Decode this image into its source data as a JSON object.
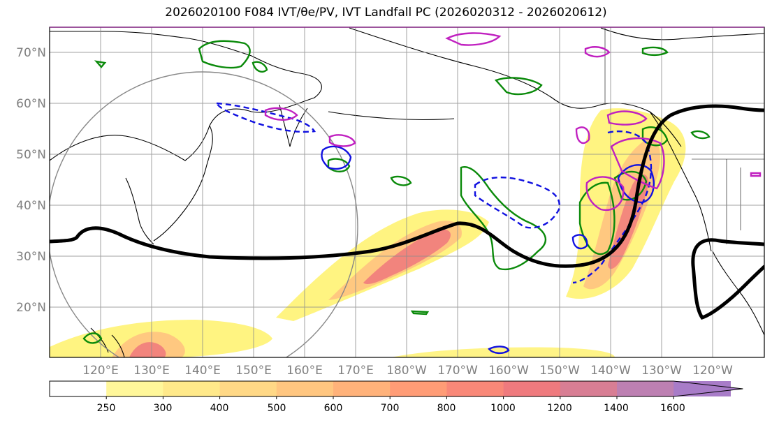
{
  "title": "2026020100 F084 IVT/θe/PV, IVT Landfall PC (2026020312 - 2026020612)",
  "lat_labels": [
    "70°N",
    "60°N",
    "50°N",
    "40°N",
    "30°N",
    "20°N"
  ],
  "lon_labels": [
    "120°E",
    "130°E",
    "140°E",
    "150°E",
    "160°E",
    "170°E",
    "180°W",
    "170°W",
    "160°W",
    "150°W",
    "140°W",
    "130°W",
    "120°W"
  ],
  "colorbar": {
    "ticks": [
      "250",
      "300",
      "400",
      "500",
      "600",
      "700",
      "800",
      "1000",
      "1200",
      "1400",
      "1600"
    ],
    "colors": [
      "#ffffff",
      "#fff79a",
      "#ffe98a",
      "#ffd886",
      "#ffc680",
      "#ffb27a",
      "#ff9c76",
      "#f98878",
      "#ef7a7e",
      "#d87e94",
      "#bd80b2",
      "#a87cc8"
    ]
  },
  "colors": {
    "ivt_low": "#fff37a",
    "ivt_mid": "#ffc07e",
    "ivt_high": "#f0787c",
    "pv_contour": "#0a8a0a",
    "theta_contour": "#1010e0",
    "magenta_contour": "#c020c0",
    "jet_line": "#000000"
  }
}
